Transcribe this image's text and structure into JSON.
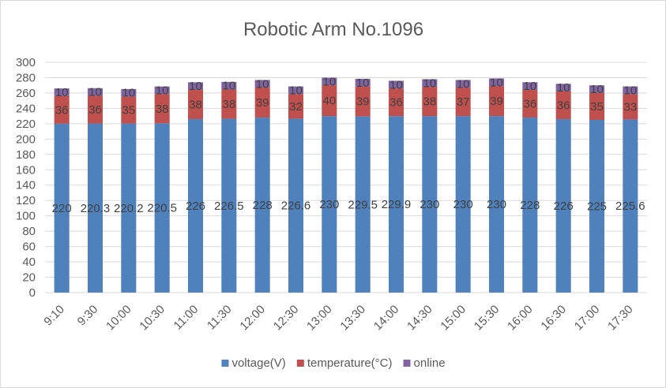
{
  "chart_data": {
    "type": "bar",
    "stacked": true,
    "title": "Robotic Arm No.1096",
    "xlabel": "",
    "ylabel": "",
    "ylim": [
      0,
      300
    ],
    "ytick_step": 20,
    "grid": true,
    "legend_position": "bottom",
    "categories": [
      "9:10",
      "9:30",
      "10:00",
      "10:30",
      "11:00",
      "11:30",
      "12:00",
      "12:30",
      "13:00",
      "13:30",
      "14:00",
      "14:30",
      "15:00",
      "15:30",
      "16:00",
      "16:30",
      "17:00",
      "17:30"
    ],
    "series": [
      {
        "name": "voltage(V)",
        "color": "#4f81bd",
        "values": [
          220,
          220.3,
          220.2,
          220.5,
          226,
          226.5,
          228,
          226.6,
          230,
          229.5,
          229.9,
          230,
          230,
          230,
          228,
          226,
          225,
          225.6
        ],
        "labels": [
          "220",
          "220.3",
          "220.2",
          "220.5",
          "226",
          "226.5",
          "228",
          "226.6",
          "230",
          "229.5",
          "229.9",
          "230",
          "230",
          "230",
          "228",
          "226",
          "225",
          "225.6"
        ]
      },
      {
        "name": "temperature(°C)",
        "color": "#c0504d",
        "values": [
          36,
          36,
          35,
          38,
          38,
          38,
          39,
          32,
          40,
          39,
          36,
          38,
          37,
          39,
          36,
          36,
          35,
          33
        ],
        "labels": [
          "36",
          "36",
          "35",
          "38",
          "38",
          "38",
          "39",
          "32",
          "40",
          "39",
          "36",
          "38",
          "37",
          "39",
          "36",
          "36",
          "35",
          "33"
        ]
      },
      {
        "name": "online",
        "color": "#8064a2",
        "values": [
          10,
          10,
          10,
          10,
          10,
          10,
          10,
          10,
          10,
          10,
          10,
          10,
          10,
          10,
          10,
          10,
          10,
          10
        ],
        "labels": [
          "10",
          "10",
          "10",
          "10",
          "10",
          "10",
          "10",
          "10",
          "10",
          "10",
          "10",
          "10",
          "10",
          "10",
          "10",
          "10",
          "10",
          "10"
        ]
      }
    ]
  }
}
